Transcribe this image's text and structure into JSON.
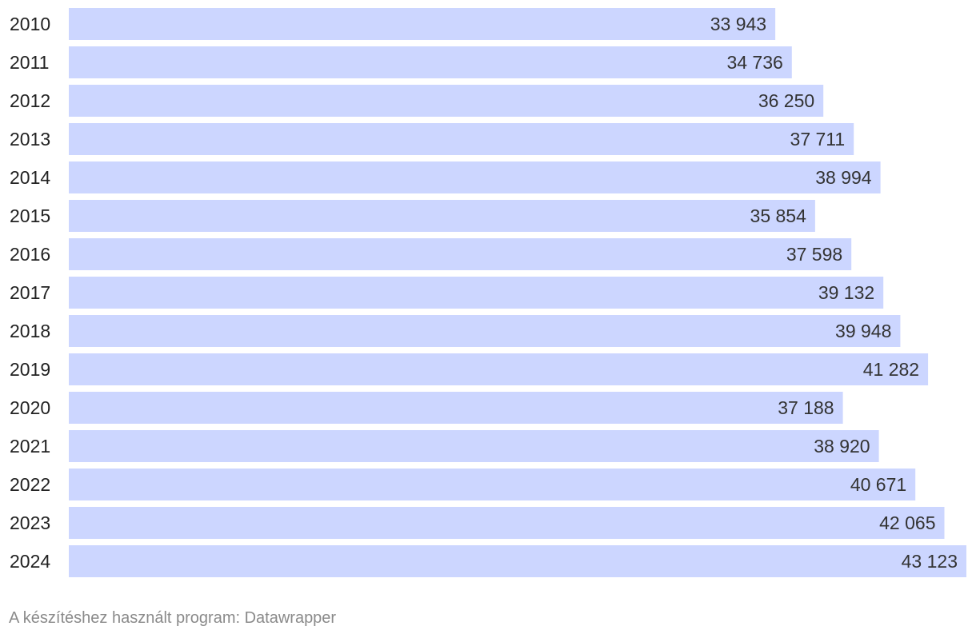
{
  "chart_data": {
    "type": "bar",
    "orientation": "horizontal",
    "categories": [
      "2010",
      "2011",
      "2012",
      "2013",
      "2014",
      "2015",
      "2016",
      "2017",
      "2018",
      "2019",
      "2020",
      "2021",
      "2022",
      "2023",
      "2024"
    ],
    "values": [
      33943,
      34736,
      36250,
      37711,
      38994,
      35854,
      37598,
      39132,
      39948,
      41282,
      37188,
      38920,
      40671,
      42065,
      43123
    ],
    "value_labels": [
      "33 943",
      "34 736",
      "36 250",
      "37 711",
      "38 994",
      "35 854",
      "37 598",
      "39 132",
      "39 948",
      "41 282",
      "37 188",
      "38 920",
      "40 671",
      "42 065",
      "43 123"
    ],
    "title": "",
    "xlabel": "",
    "ylabel": "",
    "xlim": [
      0,
      43123
    ],
    "grid": false,
    "legend": "none",
    "bar_color": "#ccd6ff"
  },
  "footer": {
    "credit": "A készítéshez használt program: Datawrapper"
  }
}
